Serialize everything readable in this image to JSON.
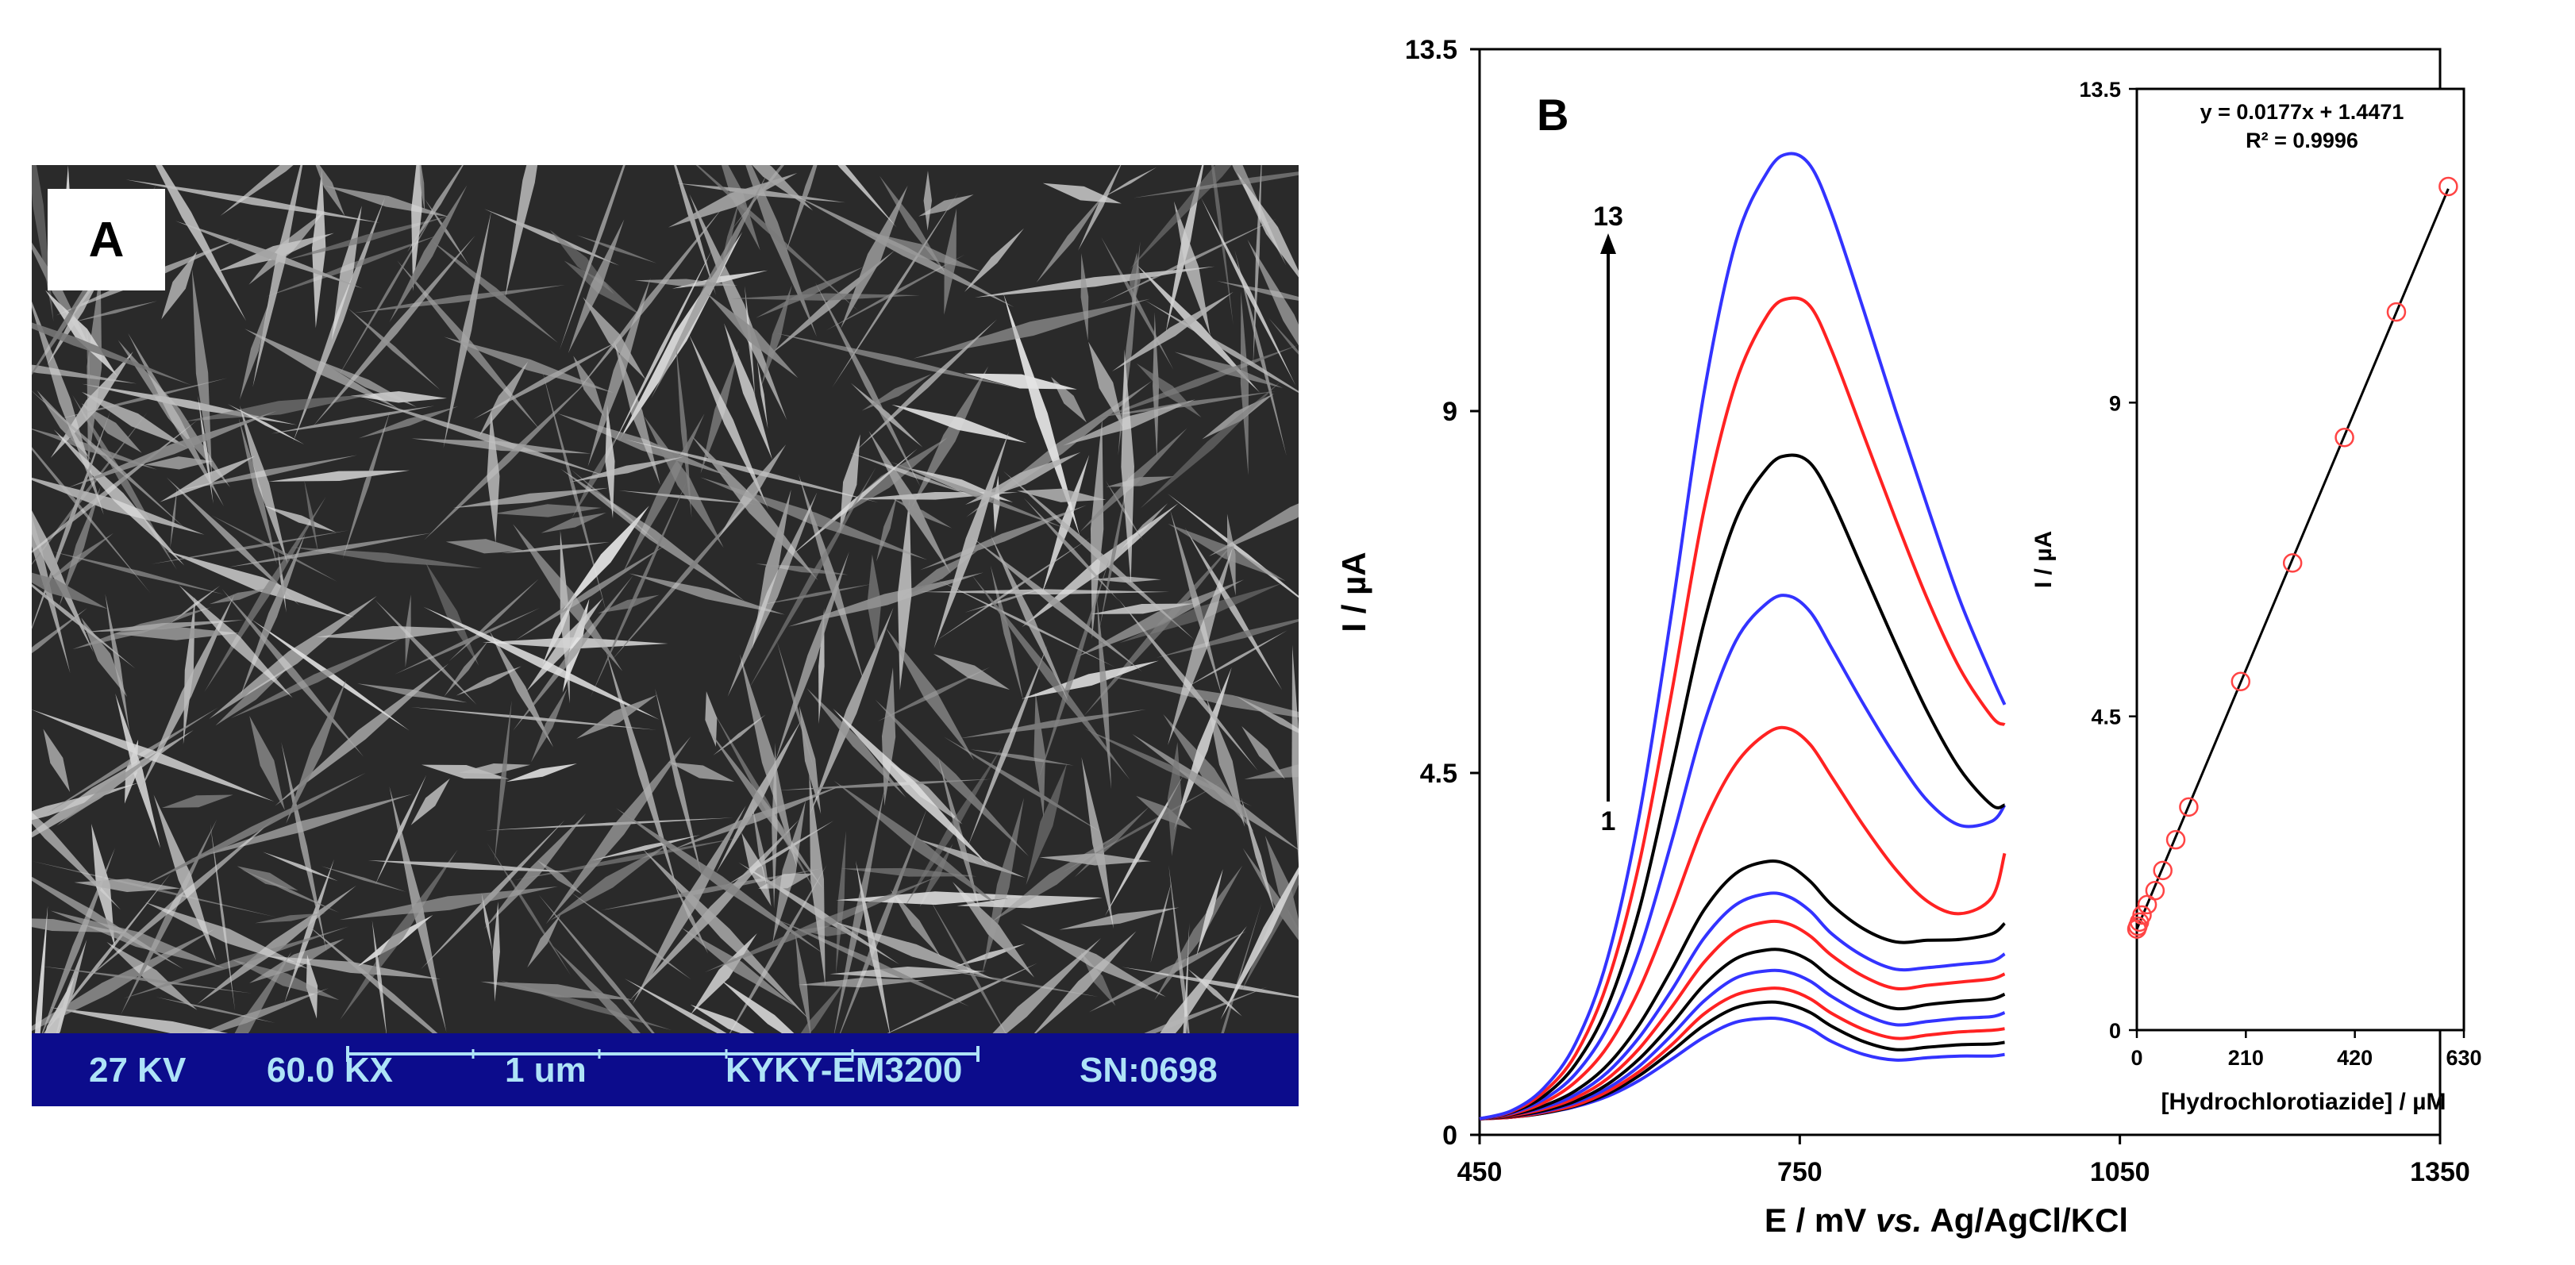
{
  "panel_a": {
    "label": "A",
    "info_bar": {
      "voltage": "27 KV",
      "magnification": "60.0 KX",
      "scale": "1 um",
      "instrument": "KYKY-EM3200",
      "serial": "SN:0698"
    }
  },
  "chart_data": [
    {
      "type": "line",
      "panel_label": "B",
      "title": "",
      "xlabel": "E / mV vs. Ag/AgCl/KCl",
      "xlabel_parts": {
        "prefix": "E / mV ",
        "italic": "vs.",
        "suffix": " Ag/AgCl/KCl"
      },
      "ylabel": "I / µA",
      "xlim": [
        450,
        1350
      ],
      "ylim": [
        0,
        13.5
      ],
      "x_ticks": [
        "450",
        "750",
        "1050",
        "1350"
      ],
      "y_ticks": [
        "0",
        "4.5",
        "9",
        "13.5"
      ],
      "grid": false,
      "legend": "none",
      "arrow_annotation": {
        "from_label": "1",
        "to_label": "13"
      },
      "x": [
        450,
        480,
        510,
        540,
        570,
        600,
        630,
        660,
        690,
        720,
        740,
        760,
        780,
        810,
        840,
        870,
        900,
        930,
        942
      ],
      "series": [
        {
          "color": "#3333ff",
          "values": [
            0.2,
            0.22,
            0.27,
            0.35,
            0.48,
            0.68,
            0.94,
            1.21,
            1.4,
            1.45,
            1.42,
            1.32,
            1.16,
            1.0,
            0.93,
            0.96,
            0.98,
            0.98,
            1.0
          ]
        },
        {
          "color": "#000000",
          "values": [
            0.2,
            0.22,
            0.27,
            0.36,
            0.51,
            0.74,
            1.04,
            1.36,
            1.58,
            1.65,
            1.62,
            1.52,
            1.35,
            1.16,
            1.06,
            1.09,
            1.12,
            1.13,
            1.15
          ]
        },
        {
          "color": "#ff2222",
          "values": [
            0.2,
            0.22,
            0.28,
            0.37,
            0.54,
            0.79,
            1.12,
            1.5,
            1.74,
            1.82,
            1.8,
            1.69,
            1.51,
            1.31,
            1.2,
            1.24,
            1.28,
            1.3,
            1.32
          ]
        },
        {
          "color": "#3333ff",
          "values": [
            0.2,
            0.23,
            0.29,
            0.4,
            0.58,
            0.86,
            1.24,
            1.66,
            1.95,
            2.04,
            2.02,
            1.91,
            1.72,
            1.5,
            1.37,
            1.41,
            1.45,
            1.47,
            1.52
          ]
        },
        {
          "color": "#000000",
          "values": [
            0.2,
            0.23,
            0.3,
            0.42,
            0.63,
            0.95,
            1.38,
            1.86,
            2.19,
            2.3,
            2.28,
            2.16,
            1.95,
            1.71,
            1.57,
            1.62,
            1.66,
            1.69,
            1.75
          ]
        },
        {
          "color": "#ff2222",
          "values": [
            0.2,
            0.24,
            0.32,
            0.46,
            0.7,
            1.08,
            1.59,
            2.14,
            2.52,
            2.65,
            2.62,
            2.47,
            2.23,
            1.97,
            1.82,
            1.86,
            1.9,
            1.94,
            2.0
          ]
        },
        {
          "color": "#3333ff",
          "values": [
            0.2,
            0.25,
            0.34,
            0.5,
            0.78,
            1.22,
            1.8,
            2.44,
            2.86,
            3.0,
            2.96,
            2.78,
            2.5,
            2.22,
            2.06,
            2.08,
            2.12,
            2.16,
            2.25
          ]
        },
        {
          "color": "#000000",
          "values": [
            0.2,
            0.25,
            0.36,
            0.55,
            0.87,
            1.38,
            2.06,
            2.79,
            3.25,
            3.4,
            3.35,
            3.15,
            2.86,
            2.56,
            2.4,
            2.42,
            2.43,
            2.5,
            2.63
          ]
        },
        {
          "color": "#ff2222",
          "values": [
            0.2,
            0.26,
            0.4,
            0.66,
            1.1,
            1.82,
            2.8,
            3.86,
            4.61,
            5.0,
            5.05,
            4.85,
            4.45,
            3.84,
            3.3,
            2.9,
            2.75,
            2.95,
            3.5
          ]
        },
        {
          "color": "#3333ff",
          "values": [
            0.2,
            0.27,
            0.44,
            0.76,
            1.34,
            2.3,
            3.65,
            5.1,
            6.14,
            6.62,
            6.7,
            6.5,
            6.05,
            5.35,
            4.7,
            4.15,
            3.85,
            3.9,
            4.1
          ]
        },
        {
          "color": "#000000",
          "values": [
            0.2,
            0.28,
            0.48,
            0.88,
            1.6,
            2.82,
            4.55,
            6.35,
            7.65,
            8.3,
            8.45,
            8.35,
            7.9,
            7.0,
            6.1,
            5.25,
            4.55,
            4.1,
            4.1
          ]
        },
        {
          "color": "#ff2222",
          "values": [
            0.2,
            0.29,
            0.53,
            1.0,
            1.9,
            3.4,
            5.5,
            7.75,
            9.35,
            10.2,
            10.4,
            10.3,
            9.75,
            8.7,
            7.65,
            6.65,
            5.8,
            5.2,
            5.1
          ]
        },
        {
          "color": "#3333ff",
          "values": [
            0.2,
            0.3,
            0.58,
            1.14,
            2.2,
            4.0,
            6.5,
            9.2,
            11.1,
            11.98,
            12.2,
            12.05,
            11.45,
            10.25,
            9.0,
            7.8,
            6.65,
            5.7,
            5.35
          ]
        }
      ]
    },
    {
      "type": "scatter",
      "title": "",
      "xlabel": "[Hydrochlorotiazide] / µM",
      "ylabel": "I / µA",
      "xlim": [
        0,
        630
      ],
      "ylim": [
        0,
        13.5
      ],
      "x_ticks": [
        "0",
        "210",
        "420",
        "630"
      ],
      "y_ticks": [
        "0",
        "4.5",
        "9",
        "13.5"
      ],
      "fit_equation": "y = 0.0177x + 1.4471",
      "fit_r2": "R² = 0.9996",
      "fit_line": {
        "slope": 0.0177,
        "intercept": 1.4471,
        "x_range": [
          0,
          600
        ]
      },
      "marker_color": "#ff4444",
      "x": [
        0,
        2,
        5,
        10,
        20,
        35,
        50,
        75,
        100,
        200,
        300,
        400,
        500,
        600
      ],
      "y": [
        1.45,
        1.49,
        1.55,
        1.65,
        1.8,
        2.0,
        2.29,
        2.73,
        3.2,
        5.0,
        6.7,
        8.5,
        10.3,
        12.1
      ]
    }
  ]
}
